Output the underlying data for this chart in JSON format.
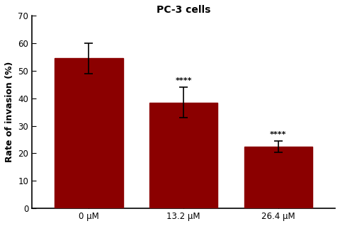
{
  "title": "PC-3 cells",
  "ylabel": "Rate of invasion (%)",
  "categories": [
    "0 μM",
    "13.2 μM",
    "26.4 μM"
  ],
  "values": [
    54.5,
    38.5,
    22.5
  ],
  "errors": [
    5.5,
    5.5,
    2.0
  ],
  "bar_color": "#8B0000",
  "bar_width": 0.72,
  "ylim": [
    0,
    70
  ],
  "yticks": [
    0,
    10,
    20,
    30,
    40,
    50,
    60,
    70
  ],
  "significance": [
    "",
    "****",
    "****"
  ],
  "sig_fontsize": 8,
  "title_fontsize": 10,
  "label_fontsize": 9,
  "tick_fontsize": 8.5,
  "background_color": "#ffffff",
  "error_capsize": 4,
  "error_color": "black",
  "error_linewidth": 1.2,
  "xlim": [
    -0.6,
    2.6
  ]
}
